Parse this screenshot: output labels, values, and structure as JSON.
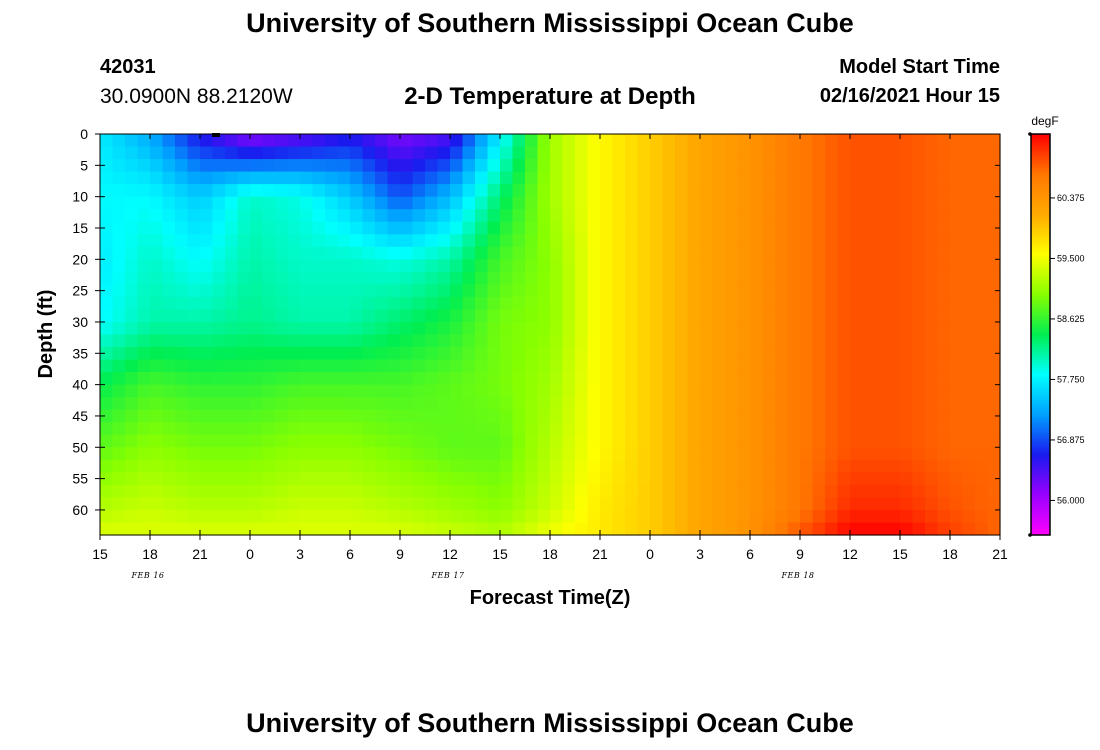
{
  "header": {
    "title": "University of Southern Mississippi Ocean Cube",
    "station_id": "42031",
    "location": "30.0900N 88.2120W",
    "chart_title": "2-D Temperature at Depth",
    "model_label": "Model Start Time",
    "model_date": "02/16/2021 Hour 15"
  },
  "footer": {
    "title": "University of Southern Mississippi Ocean Cube"
  },
  "chart_data": {
    "type": "heatmap",
    "title": "2-D Temperature at Depth",
    "xlabel": "Forecast Time(Z)",
    "ylabel": "Depth (ft)",
    "x_tick_labels": [
      "15",
      "18",
      "21",
      "0",
      "3",
      "6",
      "9",
      "12",
      "15",
      "18",
      "21",
      "0",
      "3",
      "6",
      "9",
      "12",
      "15",
      "18",
      "21"
    ],
    "day_labels": [
      "FEB 16",
      "FEB 17",
      "FEB 18"
    ],
    "day_label_tick_index": [
      1,
      7,
      14
    ],
    "y_tick_labels": [
      "0",
      "5",
      "10",
      "15",
      "20",
      "25",
      "30",
      "35",
      "40",
      "45",
      "50",
      "55",
      "60"
    ],
    "y_ticks": [
      0,
      5,
      10,
      15,
      20,
      25,
      30,
      35,
      40,
      45,
      50,
      55,
      60
    ],
    "ylim": [
      0,
      64
    ],
    "x_range_hours": [
      0,
      54
    ],
    "colorbar": {
      "unit": "degF",
      "tick_labels": [
        "56.000",
        "56.875",
        "57.750",
        "58.625",
        "59.500",
        "60.375"
      ],
      "tick_values": [
        56.0,
        56.875,
        57.75,
        58.625,
        59.5,
        60.375
      ],
      "range": [
        55.5,
        61.3
      ],
      "colors": [
        "#ff00ff",
        "#9900ff",
        "#1a1aee",
        "#00a0ff",
        "#00ffff",
        "#00ee50",
        "#88ff00",
        "#ffff00",
        "#ffaa00",
        "#ff7700",
        "#ff0000"
      ]
    },
    "depths": [
      0,
      10,
      20,
      30,
      40,
      50,
      60,
      64
    ],
    "times_hours": [
      0,
      3,
      6,
      9,
      12,
      15,
      18,
      21,
      24,
      27,
      30,
      33,
      36,
      39,
      42,
      45,
      48,
      51,
      54
    ],
    "values": [
      [
        57.7,
        57.3,
        56.6,
        56.1,
        56.3,
        56.6,
        56.2,
        56.4,
        57.7,
        59.1,
        59.6,
        59.9,
        60.2,
        60.4,
        60.7,
        60.9,
        60.9,
        60.8,
        60.8
      ],
      [
        57.8,
        57.8,
        57.5,
        58.0,
        57.9,
        57.5,
        56.9,
        57.4,
        58.3,
        59.1,
        59.6,
        59.9,
        60.2,
        60.4,
        60.7,
        60.9,
        60.9,
        60.8,
        60.8
      ],
      [
        57.7,
        58.0,
        57.8,
        58.1,
        58.0,
        58.0,
        57.9,
        58.1,
        58.7,
        59.0,
        59.6,
        59.9,
        60.2,
        60.4,
        60.7,
        60.9,
        60.9,
        60.8,
        60.8
      ],
      [
        57.8,
        58.1,
        58.1,
        58.2,
        58.1,
        58.1,
        58.3,
        58.5,
        58.9,
        59.0,
        59.6,
        59.9,
        60.2,
        60.4,
        60.7,
        60.9,
        60.9,
        60.8,
        60.8
      ],
      [
        58.4,
        58.7,
        58.6,
        58.6,
        58.7,
        58.7,
        58.7,
        58.8,
        58.9,
        59.1,
        59.6,
        59.9,
        60.2,
        60.4,
        60.7,
        60.9,
        60.9,
        60.8,
        60.8
      ],
      [
        58.8,
        59.0,
        58.9,
        58.9,
        59.0,
        59.0,
        58.9,
        58.8,
        58.8,
        59.2,
        59.6,
        59.9,
        60.2,
        60.4,
        60.7,
        60.9,
        60.9,
        60.8,
        60.8
      ],
      [
        59.2,
        59.3,
        59.2,
        59.2,
        59.3,
        59.3,
        59.2,
        59.1,
        59.0,
        59.3,
        59.7,
        59.9,
        60.2,
        60.4,
        60.7,
        61.1,
        61.1,
        60.9,
        60.8
      ],
      [
        59.4,
        59.4,
        59.4,
        59.4,
        59.4,
        59.4,
        59.4,
        59.3,
        59.2,
        59.5,
        59.7,
        59.9,
        60.2,
        60.4,
        60.9,
        61.3,
        61.3,
        61.0,
        60.8
      ]
    ]
  }
}
